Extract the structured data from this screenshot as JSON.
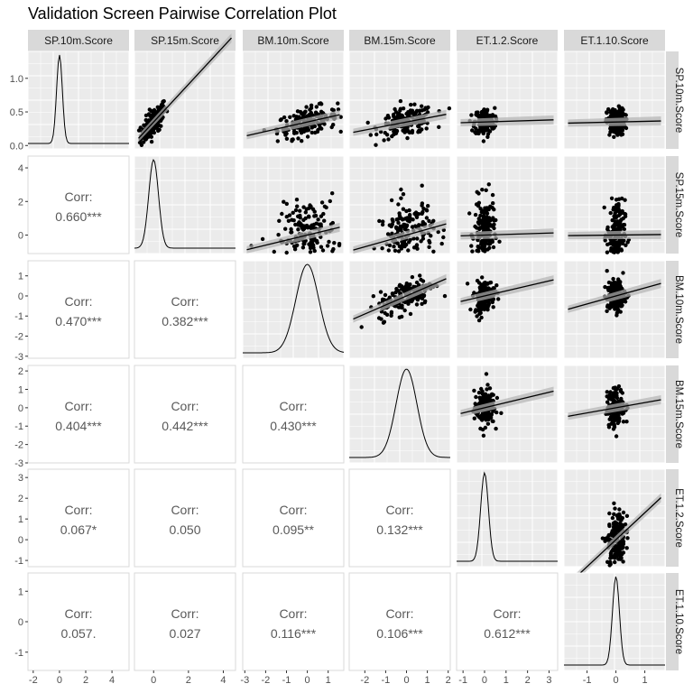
{
  "chart_data": {
    "type": "pairs",
    "title": "Validation Screen Pairwise Correlation Plot",
    "variables": [
      "SP.10m.Score",
      "SP.15m.Score",
      "BM.10m.Score",
      "BM.15m.Score",
      "ET.1.2.Score",
      "ET.1.10.Score"
    ],
    "x_ticks": [
      [
        "-2",
        "0",
        "2",
        "4"
      ],
      [
        "0",
        "2",
        "4"
      ],
      [
        "-3",
        "-2",
        "-1",
        "0",
        "1"
      ],
      [
        "-2",
        "-1",
        "0",
        "1",
        "2"
      ],
      [
        "-1",
        "0",
        "1",
        "2",
        "3"
      ],
      [
        "-1",
        "0",
        "1"
      ]
    ],
    "y_ticks": [
      [
        "0.0",
        "0.5",
        "1.0"
      ],
      [
        "0",
        "2",
        "4"
      ],
      [
        "-3",
        "-2",
        "-1",
        "0",
        "1"
      ],
      [
        "-3",
        "-2",
        "-1",
        "0",
        "1",
        "2"
      ],
      [
        "-1",
        "0",
        "1",
        "2",
        "3"
      ],
      [
        "-1",
        "0",
        "1"
      ]
    ],
    "correlations": [
      {
        "row": "SP.15m.Score",
        "col": "SP.10m.Score",
        "label": "Corr:",
        "value": "0.660***"
      },
      {
        "row": "BM.10m.Score",
        "col": "SP.10m.Score",
        "label": "Corr:",
        "value": "0.470***"
      },
      {
        "row": "BM.10m.Score",
        "col": "SP.15m.Score",
        "label": "Corr:",
        "value": "0.382***"
      },
      {
        "row": "BM.15m.Score",
        "col": "SP.10m.Score",
        "label": "Corr:",
        "value": "0.404***"
      },
      {
        "row": "BM.15m.Score",
        "col": "SP.15m.Score",
        "label": "Corr:",
        "value": "0.442***"
      },
      {
        "row": "BM.15m.Score",
        "col": "BM.10m.Score",
        "label": "Corr:",
        "value": "0.430***"
      },
      {
        "row": "ET.1.2.Score",
        "col": "SP.10m.Score",
        "label": "Corr:",
        "value": "0.067*"
      },
      {
        "row": "ET.1.2.Score",
        "col": "SP.15m.Score",
        "label": "Corr:",
        "value": "0.050"
      },
      {
        "row": "ET.1.2.Score",
        "col": "BM.10m.Score",
        "label": "Corr:",
        "value": "0.095**"
      },
      {
        "row": "ET.1.2.Score",
        "col": "BM.15m.Score",
        "label": "Corr:",
        "value": "0.132***"
      },
      {
        "row": "ET.1.10.Score",
        "col": "SP.10m.Score",
        "label": "Corr:",
        "value": "0.057."
      },
      {
        "row": "ET.1.10.Score",
        "col": "SP.15m.Score",
        "label": "Corr:",
        "value": "0.027"
      },
      {
        "row": "ET.1.10.Score",
        "col": "BM.10m.Score",
        "label": "Corr:",
        "value": "0.116***"
      },
      {
        "row": "ET.1.10.Score",
        "col": "BM.15m.Score",
        "label": "Corr:",
        "value": "0.106***"
      },
      {
        "row": "ET.1.10.Score",
        "col": "ET.1.2.Score",
        "label": "Corr:",
        "value": "0.612***"
      }
    ],
    "diagonal": "density",
    "upper": "scatter with linear fit and confidence band",
    "grid": true,
    "colors": {
      "panel_bg": "#ebebeb",
      "strip_bg": "#d9d9d9",
      "grid": "#ffffff",
      "points": "#000000",
      "corr_text": "#595959",
      "band": "#b3b3b3"
    }
  }
}
